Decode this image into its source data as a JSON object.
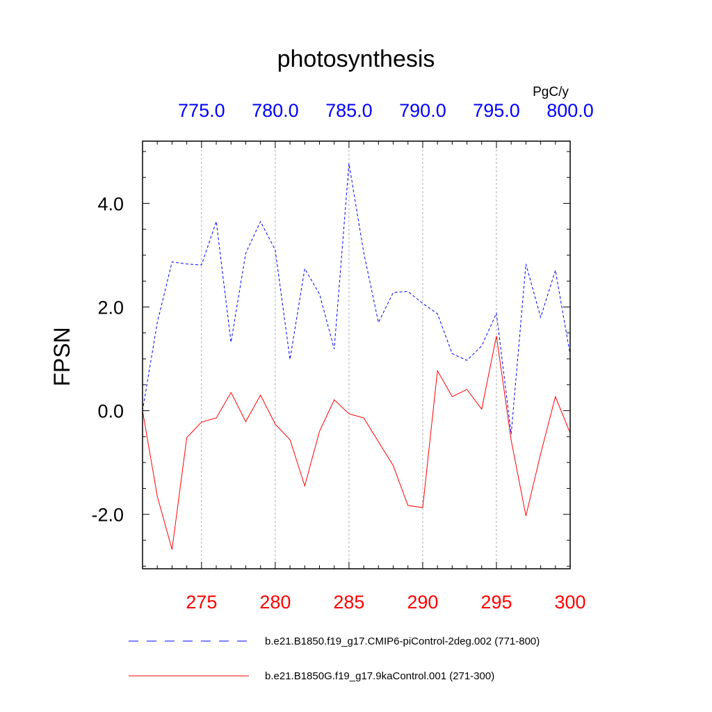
{
  "chart_data": {
    "type": "line",
    "title": "photosynthesis",
    "ylabel": "FPSN",
    "units": "PgC/y",
    "ylim": [
      -3.05,
      5.2
    ],
    "yticks": [
      -2.0,
      0.0,
      2.0,
      4.0
    ],
    "ytick_labels": [
      "-2.0",
      "0.0",
      "2.0",
      "4.0"
    ],
    "bottom_axis": {
      "range": [
        271,
        300
      ],
      "ticks": [
        275,
        280,
        285,
        290,
        295,
        300
      ],
      "tick_labels": [
        "275",
        "280",
        "285",
        "290",
        "295",
        "300"
      ],
      "color": "#ff0000"
    },
    "top_axis": {
      "range": [
        771,
        800
      ],
      "ticks": [
        775,
        780,
        785,
        790,
        795,
        800
      ],
      "tick_labels": [
        "775.0",
        "780.0",
        "785.0",
        "790.0",
        "795.0",
        "800.0"
      ],
      "color": "#0000ff"
    },
    "grid": "vertical-dashed",
    "series": [
      {
        "name": "b.e21.B1850.f19_g17.CMIP6-piControl-2deg.002 (771-800)",
        "axis": "top",
        "color": "#0000ff",
        "dash": "dashed",
        "x": [
          771,
          772,
          773,
          774,
          775,
          776,
          777,
          778,
          779,
          780,
          781,
          782,
          783,
          784,
          785,
          786,
          787,
          788,
          789,
          790,
          791,
          792,
          793,
          794,
          795,
          796,
          797,
          798,
          799,
          800
        ],
        "values": [
          0.0,
          1.7,
          2.87,
          2.83,
          2.81,
          3.65,
          1.32,
          3.04,
          3.65,
          3.1,
          0.99,
          2.74,
          2.25,
          1.19,
          4.77,
          3.05,
          1.7,
          2.28,
          2.3,
          2.07,
          1.87,
          1.1,
          0.97,
          1.25,
          1.88,
          -0.45,
          2.83,
          1.8,
          2.71,
          1.08
        ]
      },
      {
        "name": "b.e21.B1850G.f19_g17.9kaControl.001 (271-300)",
        "axis": "bottom",
        "color": "#ff0000",
        "dash": "solid",
        "x": [
          271,
          272,
          273,
          274,
          275,
          276,
          277,
          278,
          279,
          280,
          281,
          282,
          283,
          284,
          285,
          286,
          287,
          288,
          289,
          290,
          291,
          292,
          293,
          294,
          295,
          296,
          297,
          298,
          299,
          300
        ],
        "values": [
          0.0,
          -1.65,
          -2.68,
          -0.52,
          -0.22,
          -0.14,
          0.35,
          -0.21,
          0.3,
          -0.26,
          -0.56,
          -1.45,
          -0.4,
          0.21,
          -0.06,
          -0.14,
          -0.6,
          -1.06,
          -1.83,
          -1.87,
          0.77,
          0.27,
          0.41,
          0.03,
          1.44,
          -0.57,
          -2.03,
          -0.83,
          0.27,
          -0.43
        ]
      }
    ]
  }
}
